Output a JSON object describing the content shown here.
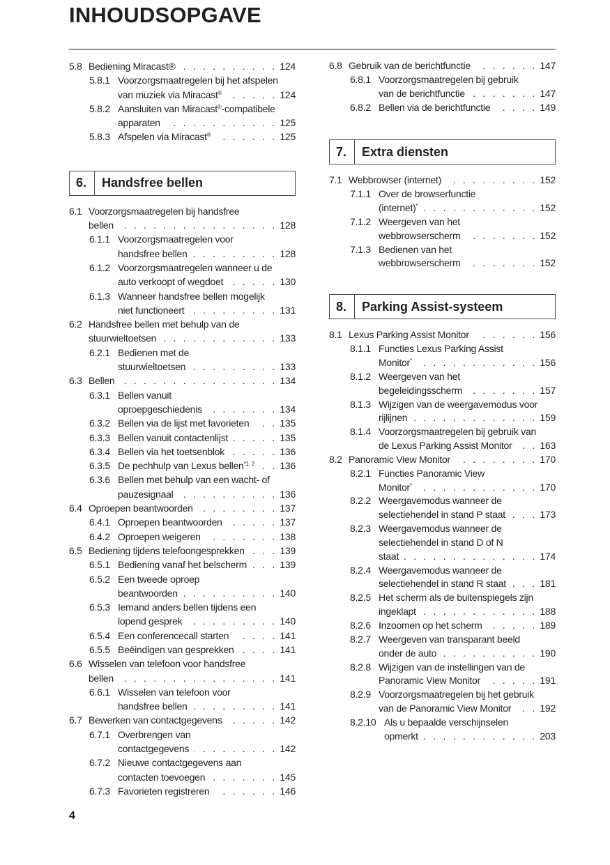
{
  "header": {
    "title": "INHOUDSOPGAVE"
  },
  "footer": {
    "page_number": "4"
  },
  "columns": [
    {
      "id": "left",
      "blocks": [
        {
          "type": "entries",
          "items": [
            {
              "num": "5.8",
              "level": 1,
              "lines": [
                "Bediening Miracast®"
              ],
              "page": "124"
            },
            {
              "num": "5.8.1",
              "level": 2,
              "lines": [
                "Voorzorgsmaatregelen bij het afspelen",
                {
                  "t": "van muziek via Miracast",
                  "s": "®"
                }
              ],
              "page": "124"
            },
            {
              "num": "5.8.2",
              "level": 2,
              "lines": [
                {
                  "t": "Aansluiten van Miracast",
                  "s": "®",
                  "a": "-compatibele"
                },
                "apparaten"
              ],
              "page": "125"
            },
            {
              "num": "5.8.3",
              "level": 2,
              "lines": [
                {
                  "t": "Afspelen via Miracast",
                  "s": "®"
                }
              ],
              "page": "125"
            }
          ]
        },
        {
          "type": "section",
          "num": "6.",
          "title": "Handsfree bellen"
        },
        {
          "type": "entries",
          "items": [
            {
              "num": "6.1",
              "level": 1,
              "lines": [
                "Voorzorgsmaatregelen bij handsfree",
                "bellen"
              ],
              "page": "128"
            },
            {
              "num": "6.1.1",
              "level": 2,
              "lines": [
                "Voorzorgsmaatregelen voor",
                "handsfree bellen"
              ],
              "page": "128"
            },
            {
              "num": "6.1.2",
              "level": 2,
              "lines": [
                "Voorzorgsmaatregelen wanneer u de",
                "auto verkoopt of wegdoet"
              ],
              "page": "130"
            },
            {
              "num": "6.1.3",
              "level": 2,
              "lines": [
                "Wanneer handsfree bellen mogelijk",
                "niet functioneert"
              ],
              "page": "131"
            },
            {
              "num": "6.2",
              "level": 1,
              "lines": [
                "Handsfree bellen met behulp van de",
                "stuurwieltoetsen"
              ],
              "page": "133"
            },
            {
              "num": "6.2.1",
              "level": 2,
              "lines": [
                "Bedienen met de",
                "stuurwieltoetsen"
              ],
              "page": "133"
            },
            {
              "num": "6.3",
              "level": 1,
              "lines": [
                "Bellen"
              ],
              "page": "134"
            },
            {
              "num": "6.3.1",
              "level": 2,
              "lines": [
                "Bellen vanuit",
                "oproepgeschiedenis"
              ],
              "page": "134"
            },
            {
              "num": "6.3.2",
              "level": 2,
              "lines": [
                "Bellen via de lijst met favorieten"
              ],
              "page": "135"
            },
            {
              "num": "6.3.3",
              "level": 2,
              "lines": [
                "Bellen vanuit contactenlijst"
              ],
              "page": "135"
            },
            {
              "num": "6.3.4",
              "level": 2,
              "lines": [
                "Bellen via het toetsenblok"
              ],
              "page": "136"
            },
            {
              "num": "6.3.5",
              "level": 2,
              "lines": [
                {
                  "t": "De pechhulp van Lexus bellen",
                  "s": "*1, 2"
                }
              ],
              "page": "136"
            },
            {
              "num": "6.3.6",
              "level": 2,
              "lines": [
                "Bellen met behulp van een wacht- of",
                "pauzesignaal"
              ],
              "page": "136"
            },
            {
              "num": "6.4",
              "level": 1,
              "lines": [
                "Oproepen beantwoorden"
              ],
              "page": "137"
            },
            {
              "num": "6.4.1",
              "level": 2,
              "lines": [
                "Oproepen beantwoorden"
              ],
              "page": "137"
            },
            {
              "num": "6.4.2",
              "level": 2,
              "lines": [
                "Oproepen weigeren"
              ],
              "page": "138"
            },
            {
              "num": "6.5",
              "level": 1,
              "lines": [
                "Bediening tijdens telefoongesprekken"
              ],
              "page": "139"
            },
            {
              "num": "6.5.1",
              "level": 2,
              "lines": [
                "Bediening vanaf het belscherm"
              ],
              "page": "139"
            },
            {
              "num": "6.5.2",
              "level": 2,
              "lines": [
                "Een tweede oproep",
                "beantwoorden"
              ],
              "page": "140"
            },
            {
              "num": "6.5.3",
              "level": 2,
              "lines": [
                "Iemand anders bellen tijdens een",
                "lopend gesprek"
              ],
              "page": "140"
            },
            {
              "num": "6.5.4",
              "level": 2,
              "lines": [
                "Een conferencecall starten"
              ],
              "page": "141"
            },
            {
              "num": "6.5.5",
              "level": 2,
              "lines": [
                "Beëindigen van gesprekken"
              ],
              "page": "141"
            },
            {
              "num": "6.6",
              "level": 1,
              "lines": [
                "Wisselen van telefoon voor handsfree",
                "bellen"
              ],
              "page": "141"
            },
            {
              "num": "6.6.1",
              "level": 2,
              "lines": [
                "Wisselen van telefoon voor",
                "handsfree bellen"
              ],
              "page": "141"
            },
            {
              "num": "6.7",
              "level": 1,
              "lines": [
                "Bewerken van contactgegevens"
              ],
              "page": "142"
            },
            {
              "num": "6.7.1",
              "level": 2,
              "lines": [
                "Overbrengen van",
                "contactgegevens"
              ],
              "page": "142"
            },
            {
              "num": "6.7.2",
              "level": 2,
              "lines": [
                "Nieuwe contactgegevens aan",
                "contacten toevoegen"
              ],
              "page": "145"
            },
            {
              "num": "6.7.3",
              "level": 2,
              "lines": [
                "Favorieten registreren"
              ],
              "page": "146"
            }
          ]
        }
      ]
    },
    {
      "id": "right",
      "blocks": [
        {
          "type": "entries",
          "items": [
            {
              "num": "6.8",
              "level": 1,
              "lines": [
                "Gebruik van de berichtfunctie"
              ],
              "page": "147"
            },
            {
              "num": "6.8.1",
              "level": 2,
              "lines": [
                "Voorzorgsmaatregelen bij gebruik",
                "van de berichtfunctie"
              ],
              "page": "147"
            },
            {
              "num": "6.8.2",
              "level": 2,
              "lines": [
                "Bellen via de berichtfunctie"
              ],
              "page": "149"
            }
          ]
        },
        {
          "type": "section",
          "num": "7.",
          "title": "Extra diensten"
        },
        {
          "type": "entries",
          "items": [
            {
              "num": "7.1",
              "level": 1,
              "lines": [
                "Webbrowser (internet)"
              ],
              "page": "152"
            },
            {
              "num": "7.1.1",
              "level": 2,
              "lines": [
                "Over de browserfunctie",
                {
                  "t": "(internet)",
                  "s": "*"
                }
              ],
              "page": "152"
            },
            {
              "num": "7.1.2",
              "level": 2,
              "lines": [
                "Weergeven van het",
                "webbrowserscherm"
              ],
              "page": "152"
            },
            {
              "num": "7.1.3",
              "level": 2,
              "lines": [
                "Bedienen van het",
                "webbrowserscherm"
              ],
              "page": "152"
            }
          ]
        },
        {
          "type": "section",
          "num": "8.",
          "title": "Parking Assist-systeem"
        },
        {
          "type": "entries",
          "items": [
            {
              "num": "8.1",
              "level": 1,
              "lines": [
                "Lexus Parking Assist Monitor"
              ],
              "page": "156"
            },
            {
              "num": "8.1.1",
              "level": 2,
              "lines": [
                "Functies Lexus Parking Assist",
                {
                  "t": "Monitor",
                  "s": "*"
                }
              ],
              "page": "156"
            },
            {
              "num": "8.1.2",
              "level": 2,
              "lines": [
                "Weergeven van het",
                "begeleidingsscherm"
              ],
              "page": "157"
            },
            {
              "num": "8.1.3",
              "level": 2,
              "lines": [
                "Wijzigen van de weergavemodus voor",
                "rijlijnen"
              ],
              "page": "159"
            },
            {
              "num": "8.1.4",
              "level": 2,
              "lines": [
                "Voorzorgsmaatregelen bij gebruik van",
                "de Lexus Parking Assist Monitor"
              ],
              "page": "163"
            },
            {
              "num": "8.2",
              "level": 1,
              "lines": [
                "Panoramic View Monitor"
              ],
              "page": "170"
            },
            {
              "num": "8.2.1",
              "level": 2,
              "lines": [
                "Functies Panoramic View",
                {
                  "t": "Monitor",
                  "s": "*"
                }
              ],
              "page": "170"
            },
            {
              "num": "8.2.2",
              "level": 2,
              "lines": [
                "Weergavemodus wanneer de",
                "selectiehendel in stand P staat"
              ],
              "page": "173"
            },
            {
              "num": "8.2.3",
              "level": 2,
              "lines": [
                "Weergavemodus wanneer de",
                "selectiehendel in stand D of N",
                "staat"
              ],
              "page": "174"
            },
            {
              "num": "8.2.4",
              "level": 2,
              "lines": [
                "Weergavemodus wanneer de",
                "selectiehendel in stand R staat"
              ],
              "page": "181"
            },
            {
              "num": "8.2.5",
              "level": 2,
              "lines": [
                "Het scherm als de buitenspiegels zijn",
                "ingeklapt"
              ],
              "page": "188"
            },
            {
              "num": "8.2.6",
              "level": 2,
              "lines": [
                "Inzoomen op het scherm"
              ],
              "page": "189"
            },
            {
              "num": "8.2.7",
              "level": 2,
              "lines": [
                "Weergeven van transparant beeld",
                "onder de auto"
              ],
              "page": "190"
            },
            {
              "num": "8.2.8",
              "level": 2,
              "lines": [
                "Wijzigen van de instellingen van de",
                "Panoramic View Monitor"
              ],
              "page": "191"
            },
            {
              "num": "8.2.9",
              "level": 2,
              "lines": [
                "Voorzorgsmaatregelen bij het gebruik",
                "van de Panoramic View Monitor"
              ],
              "page": "192"
            },
            {
              "num": "8.2.10",
              "level": 2,
              "lines": [
                "Als u bepaalde verschijnselen",
                "opmerkt"
              ],
              "page": "203"
            }
          ]
        }
      ]
    }
  ]
}
